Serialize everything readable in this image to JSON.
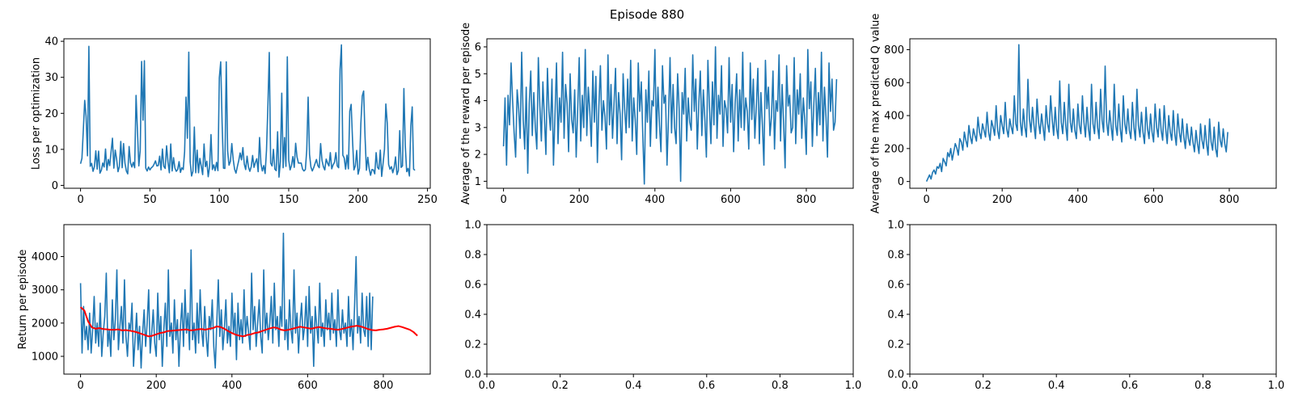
{
  "figure": {
    "suptitle": "Episode 880",
    "colors": {
      "series": "#1f77b4",
      "trend": "#ff0000",
      "axes": "#000000",
      "background": "#ffffff"
    }
  },
  "chart_data": [
    {
      "type": "line",
      "ylabel": "Loss per optimization",
      "xlabel": "",
      "xlim": [
        -12,
        252
      ],
      "ylim": [
        -0.8,
        40.7
      ],
      "xticks": [
        0,
        50,
        100,
        150,
        200,
        250
      ],
      "yticks": [
        0,
        10,
        20,
        30,
        40
      ],
      "grid": false,
      "series": [
        {
          "style": "series",
          "x_start": 0,
          "x_step": 1,
          "values": [
            6.0,
            7.5,
            15.3,
            23.6,
            19.2,
            8.2,
            38.6,
            5.3,
            6.1,
            3.9,
            5.2,
            9.6,
            4.5,
            9.5,
            3.4,
            4.2,
            6.2,
            5.1,
            10.1,
            4.2,
            7.2,
            5.5,
            9.3,
            13.1,
            4.8,
            9.8,
            7.3,
            3.8,
            5.3,
            12.2,
            4.9,
            11.6,
            6.2,
            4.0,
            3.2,
            10.8,
            6.3,
            5.1,
            6.4,
            4.9,
            25.0,
            15.3,
            5.4,
            9.7,
            34.4,
            18.1,
            34.6,
            4.8,
            4.0,
            5.1,
            4.3,
            4.9,
            5.2,
            5.9,
            6.8,
            5.4,
            5.5,
            8.1,
            4.3,
            10.1,
            5.3,
            4.7,
            11.0,
            6.5,
            3.5,
            11.5,
            4.0,
            7.7,
            4.8,
            3.9,
            4.4,
            6.6,
            3.6,
            4.9,
            4.4,
            9.4,
            24.5,
            13.1,
            37.0,
            6.6,
            2.6,
            3.9,
            16.2,
            3.5,
            9.8,
            3.5,
            7.5,
            5.3,
            3.0,
            11.5,
            5.2,
            6.7,
            2.4,
            5.3,
            14.1,
            4.4,
            5.7,
            4.1,
            6.4,
            4.1,
            29.9,
            34.3,
            17.5,
            4.8,
            4.7,
            34.3,
            9.5,
            5.6,
            6.7,
            11.6,
            7.2,
            4.5,
            3.4,
            5.2,
            6.9,
            9.0,
            7.1,
            10.5,
            5.9,
            4.4,
            8.1,
            5.1,
            3.9,
            5.2,
            8.3,
            5.0,
            6.4,
            7.4,
            3.8,
            13.3,
            6.0,
            4.0,
            5.5,
            3.3,
            9.8,
            22.0,
            36.9,
            6.2,
            5.4,
            10.0,
            4.5,
            4.1,
            14.9,
            2.3,
            6.6,
            25.6,
            4.9,
            13.3,
            5.3,
            35.7,
            7.0,
            4.3,
            5.5,
            8.0,
            5.0,
            11.7,
            7.9,
            6.2,
            6.2,
            6.2,
            4.5,
            4.0,
            4.4,
            9.8,
            24.5,
            8.6,
            5.1,
            4.0,
            4.9,
            6.1,
            7.2,
            5.5,
            4.9,
            11.6,
            6.9,
            5.2,
            4.3,
            7.3,
            6.2,
            5.4,
            9.1,
            4.6,
            5.7,
            6.4,
            9.1,
            5.4,
            4.9,
            32.2,
            39.0,
            8.4,
            7.6,
            4.5,
            8.4,
            4.6,
            20.6,
            22.5,
            12.5,
            4.3,
            5.4,
            9.7,
            3.1,
            4.7,
            17.2,
            24.8,
            26.2,
            13.6,
            4.2,
            7.8,
            4.6,
            2.8,
            4.4,
            4.3,
            3.2,
            9.1,
            5.0,
            4.5,
            9.8,
            2.5,
            6.1,
            10.0,
            22.6,
            17.3,
            5.8,
            4.5,
            5.2,
            3.5,
            5.0,
            7.9,
            3.0,
            4.1,
            15.2,
            5.0,
            5.4,
            26.9,
            11.1,
            3.8,
            4.7,
            2.6,
            16.5,
            21.8,
            4.5,
            4.2
          ]
        }
      ]
    },
    {
      "type": "line",
      "ylabel": "Average of the reward per episode",
      "xlabel": "",
      "xlim": [
        -44,
        924
      ],
      "ylim": [
        0.74,
        6.3
      ],
      "xticks": [
        0,
        200,
        400,
        600,
        800
      ],
      "yticks": [
        1,
        2,
        3,
        4,
        5,
        6
      ],
      "grid": false,
      "series": [
        {
          "style": "series",
          "x_start": 0,
          "x_step": 4,
          "values": [
            2.3,
            4.1,
            1.6,
            4.2,
            3.1,
            5.4,
            4.0,
            2.8,
            1.9,
            4.4,
            3.7,
            2.6,
            5.8,
            3.3,
            2.2,
            4.5,
            1.3,
            3.9,
            5.1,
            2.7,
            4.3,
            3.0,
            2.2,
            5.6,
            3.8,
            2.5,
            4.7,
            3.4,
            2.0,
            5.2,
            3.6,
            2.9,
            4.8,
            1.6,
            3.5,
            5.4,
            2.4,
            4.1,
            3.2,
            5.8,
            2.6,
            4.6,
            3.9,
            2.1,
            5.0,
            3.3,
            2.8,
            4.4,
            1.9,
            3.7,
            5.6,
            2.5,
            4.2,
            3.0,
            5.9,
            2.7,
            4.5,
            3.6,
            2.3,
            5.1,
            3.2,
            4.9,
            1.7,
            3.8,
            5.3,
            2.9,
            4.0,
            3.4,
            2.2,
            5.7,
            3.1,
            4.6,
            2.6,
            3.9,
            5.2,
            2.4,
            4.3,
            3.5,
            1.8,
            5.0,
            3.7,
            2.8,
            4.8,
            3.0,
            5.5,
            2.5,
            4.1,
            3.3,
            2.0,
            5.4,
            3.6,
            4.7,
            2.7,
            0.9,
            4.4,
            3.2,
            5.1,
            2.3,
            4.0,
            3.8,
            5.9,
            2.6,
            4.5,
            3.1,
            2.1,
            5.3,
            3.9,
            4.2,
            1.6,
            3.4,
            5.6,
            2.8,
            4.6,
            3.0,
            2.4,
            5.0,
            3.7,
            1.0,
            4.3,
            3.5,
            5.2,
            2.5,
            4.1,
            3.2,
            2.9,
            5.7,
            3.6,
            4.8,
            2.2,
            3.9,
            5.1,
            2.7,
            4.4,
            3.3,
            1.9,
            5.5,
            3.8,
            2.4,
            4.7,
            3.1,
            6.0,
            2.6,
            4.2,
            3.5,
            5.3,
            2.3,
            4.0,
            3.7,
            2.8,
            5.6,
            3.2,
            4.6,
            2.1,
            3.9,
            5.0,
            2.5,
            4.4,
            3.0,
            5.8,
            2.9,
            4.1,
            3.6,
            2.2,
            5.4,
            3.3,
            4.8,
            2.6,
            3.8,
            5.2,
            2.4,
            4.3,
            3.1,
            1.6,
            5.5,
            3.7,
            4.5,
            2.7,
            3.4,
            5.1,
            2.2,
            4.0,
            3.6,
            5.7,
            2.5,
            4.6,
            3.2,
            1.5,
            5.3,
            3.8,
            4.2,
            2.8,
            3.0,
            5.6,
            2.4,
            4.4,
            3.5,
            5.0,
            2.6,
            4.1,
            3.3,
            2.0,
            5.9,
            3.7,
            4.7,
            2.3,
            3.9,
            5.2,
            2.7,
            4.3,
            3.1,
            5.8,
            2.5,
            4.5,
            3.4,
            1.9,
            5.4,
            3.6,
            4.8,
            2.9,
            3.2,
            4.8
          ]
        }
      ]
    },
    {
      "type": "line",
      "ylabel": "Average of the max predicted Q value",
      "xlabel": "",
      "xlim": [
        -44,
        924
      ],
      "ylim": [
        -41,
        866
      ],
      "xticks": [
        0,
        200,
        400,
        600,
        800
      ],
      "yticks": [
        0,
        200,
        400,
        600,
        800
      ],
      "grid": false,
      "series": [
        {
          "style": "series",
          "x_start": 0,
          "x_step": 4,
          "values": [
            0,
            20,
            40,
            15,
            55,
            70,
            45,
            90,
            80,
            110,
            60,
            140,
            120,
            95,
            175,
            150,
            200,
            130,
            180,
            230,
            205,
            160,
            260,
            240,
            190,
            300,
            250,
            210,
            340,
            270,
            230,
            320,
            280,
            245,
            390,
            300,
            260,
            350,
            310,
            270,
            420,
            300,
            250,
            370,
            330,
            280,
            460,
            310,
            260,
            400,
            340,
            290,
            480,
            320,
            270,
            380,
            330,
            290,
            520,
            350,
            310,
            830,
            360,
            280,
            440,
            330,
            270,
            620,
            380,
            300,
            450,
            340,
            260,
            500,
            360,
            290,
            410,
            330,
            250,
            460,
            350,
            300,
            520,
            380,
            280,
            450,
            320,
            260,
            610,
            360,
            290,
            480,
            340,
            250,
            590,
            360,
            300,
            440,
            310,
            260,
            470,
            340,
            290,
            520,
            360,
            270,
            450,
            320,
            250,
            590,
            350,
            290,
            480,
            330,
            260,
            560,
            370,
            300,
            700,
            360,
            280,
            430,
            330,
            250,
            590,
            340,
            280,
            470,
            320,
            240,
            520,
            350,
            290,
            440,
            310,
            260,
            480,
            330,
            250,
            560,
            340,
            270,
            420,
            300,
            230,
            450,
            320,
            260,
            410,
            300,
            240,
            470,
            330,
            270,
            440,
            310,
            250,
            460,
            320,
            230,
            400,
            300,
            250,
            430,
            290,
            220,
            410,
            300,
            240,
            380,
            270,
            200,
            350,
            260,
            220,
            330,
            240,
            180,
            310,
            230,
            170,
            350,
            250,
            200,
            340,
            230,
            160,
            380,
            240,
            190,
            330,
            200,
            150,
            360,
            250,
            210,
            320,
            230,
            180,
            300
          ]
        }
      ]
    },
    {
      "type": "line",
      "ylabel": "Return per episode",
      "xlabel": "",
      "xlim": [
        -44,
        924
      ],
      "ylim": [
        466,
        4960
      ],
      "xticks": [
        0,
        200,
        400,
        600,
        800
      ],
      "yticks": [
        1000,
        2000,
        3000,
        4000
      ],
      "grid": false,
      "series": [
        {
          "style": "series",
          "x_start": 0,
          "x_step": 4,
          "values": [
            3200,
            1100,
            2500,
            1500,
            1900,
            1200,
            2300,
            1100,
            1800,
            2800,
            1400,
            2000,
            1300,
            2600,
            1000,
            1700,
            2200,
            3500,
            1300,
            1800,
            1000,
            2700,
            1500,
            2100,
            3600,
            1200,
            1900,
            2500,
            1400,
            3300,
            1600,
            1000,
            2000,
            1800,
            2600,
            700,
            1500,
            2300,
            1200,
            1900,
            650,
            1700,
            2400,
            1300,
            2000,
            3000,
            1100,
            1700,
            2400,
            1400,
            1000,
            2900,
            1500,
            2200,
            700,
            1800,
            2600,
            1300,
            3600,
            1600,
            2000,
            1100,
            2700,
            1500,
            2100,
            700,
            1900,
            2600,
            1300,
            3000,
            1700,
            2300,
            1200,
            4200,
            1500,
            2000,
            1100,
            2600,
            1400,
            3000,
            1800,
            1300,
            2500,
            1600,
            1000,
            2200,
            1800,
            2700,
            1300,
            650,
            2000,
            3300,
            1600,
            2400,
            1200,
            1800,
            2700,
            1400,
            1900,
            1300,
            2900,
            1700,
            2300,
            900,
            2600,
            1500,
            2100,
            1400,
            3000,
            1600,
            2200,
            1700,
            1200,
            3500,
            1800,
            2500,
            1300,
            2000,
            2700,
            1600,
            1100,
            3600,
            1700,
            2300,
            1500,
            2000,
            2800,
            1400,
            3200,
            1800,
            2200,
            1300,
            2500,
            1900,
            4700,
            1500,
            2100,
            1200,
            2700,
            1800,
            1400,
            3600,
            1700,
            2300,
            1100,
            2000,
            2600,
            1500,
            1900,
            2800,
            1300,
            3100,
            1700,
            2200,
            700,
            2500,
            1900,
            1400,
            3200,
            1600,
            2000,
            1300,
            2700,
            1800,
            2300,
            1500,
            2900,
            1700,
            2100,
            1300,
            3000,
            1800,
            1500,
            2400,
            1700,
            2000,
            1300,
            2800,
            1600,
            2100,
            1200,
            2500,
            4000,
            1700,
            2200,
            1400,
            2900,
            1800,
            1600,
            2800,
            1300,
            2900,
            1200,
            2800
          ]
        },
        {
          "style": "trend",
          "x_start": 0,
          "x_step": 10,
          "values": [
            2480,
            2380,
            2050,
            1870,
            1830,
            1850,
            1820,
            1810,
            1800,
            1800,
            1810,
            1780,
            1790,
            1770,
            1750,
            1720,
            1680,
            1640,
            1600,
            1620,
            1660,
            1700,
            1720,
            1760,
            1770,
            1780,
            1790,
            1800,
            1810,
            1780,
            1790,
            1810,
            1820,
            1800,
            1830,
            1850,
            1900,
            1880,
            1830,
            1760,
            1700,
            1650,
            1620,
            1600,
            1640,
            1660,
            1700,
            1720,
            1760,
            1800,
            1840,
            1870,
            1850,
            1800,
            1780,
            1800,
            1830,
            1860,
            1890,
            1870,
            1850,
            1830,
            1860,
            1880,
            1860,
            1840,
            1830,
            1810,
            1800,
            1820,
            1850,
            1880,
            1900,
            1920,
            1900,
            1860,
            1820,
            1790,
            1780,
            1800,
            1810,
            1830,
            1860,
            1890,
            1910,
            1880,
            1840,
            1800,
            1730,
            1620
          ]
        }
      ]
    },
    {
      "type": "line",
      "ylabel": "",
      "xlabel": "",
      "xlim": [
        0,
        1
      ],
      "ylim": [
        0,
        1
      ],
      "xticks": [
        0.0,
        0.2,
        0.4,
        0.6,
        0.8,
        1.0
      ],
      "yticks": [
        0.0,
        0.2,
        0.4,
        0.6,
        0.8,
        1.0
      ],
      "grid": false,
      "series": []
    },
    {
      "type": "line",
      "ylabel": "",
      "xlabel": "",
      "xlim": [
        0,
        1
      ],
      "ylim": [
        0,
        1
      ],
      "xticks": [
        0.0,
        0.2,
        0.4,
        0.6,
        0.8,
        1.0
      ],
      "yticks": [
        0.0,
        0.2,
        0.4,
        0.6,
        0.8,
        1.0
      ],
      "grid": false,
      "series": []
    }
  ]
}
